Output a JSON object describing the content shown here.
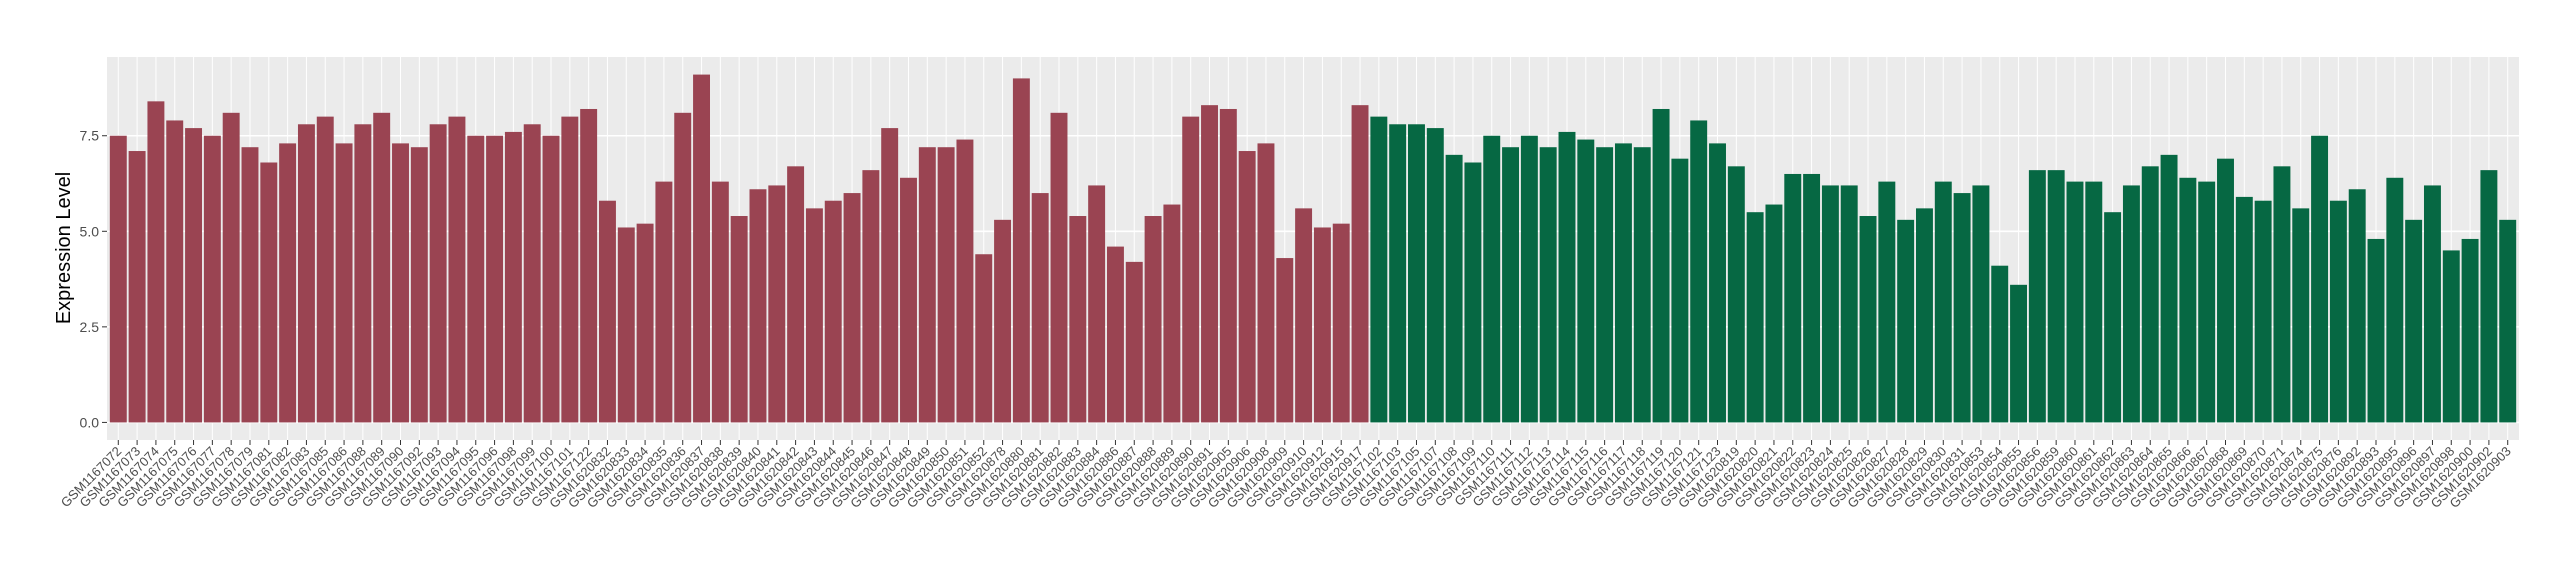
{
  "chart_data": {
    "type": "bar",
    "y_label": "Expression Level",
    "categories": [
      "GSM1167072",
      "GSM1167073",
      "GSM1167074",
      "GSM1167075",
      "GSM1167076",
      "GSM1167077",
      "GSM1167078",
      "GSM1167079",
      "GSM1167081",
      "GSM1167082",
      "GSM1167083",
      "GSM1167085",
      "GSM1167086",
      "GSM1167088",
      "GSM1167089",
      "GSM1167090",
      "GSM1167092",
      "GSM1167093",
      "GSM1167094",
      "GSM1167095",
      "GSM1167096",
      "GSM1167098",
      "GSM1167099",
      "GSM1167100",
      "GSM1167101",
      "GSM1167122",
      "GSM1620832",
      "GSM1620833",
      "GSM1620834",
      "GSM1620835",
      "GSM1620836",
      "GSM1620837",
      "GSM1620838",
      "GSM1620839",
      "GSM1620840",
      "GSM1620841",
      "GSM1620842",
      "GSM1620843",
      "GSM1620844",
      "GSM1620845",
      "GSM1620846",
      "GSM1620847",
      "GSM1620848",
      "GSM1620849",
      "GSM1620850",
      "GSM1620851",
      "GSM1620852",
      "GSM1620878",
      "GSM1620880",
      "GSM1620881",
      "GSM1620882",
      "GSM1620883",
      "GSM1620884",
      "GSM1620886",
      "GSM1620887",
      "GSM1620888",
      "GSM1620889",
      "GSM1620890",
      "GSM1620891",
      "GSM1620905",
      "GSM1620906",
      "GSM1620908",
      "GSM1620909",
      "GSM1620910",
      "GSM1620912",
      "GSM1620915",
      "GSM1620917",
      "GSM1167102",
      "GSM1167103",
      "GSM1167105",
      "GSM1167107",
      "GSM1167108",
      "GSM1167109",
      "GSM1167110",
      "GSM1167111",
      "GSM1167112",
      "GSM1167113",
      "GSM1167114",
      "GSM1167115",
      "GSM1167116",
      "GSM1167117",
      "GSM1167118",
      "GSM1167119",
      "GSM1167120",
      "GSM1167121",
      "GSM1167123",
      "GSM1620819",
      "GSM1620820",
      "GSM1620821",
      "GSM1620822",
      "GSM1620823",
      "GSM1620824",
      "GSM1620825",
      "GSM1620826",
      "GSM1620827",
      "GSM1620828",
      "GSM1620829",
      "GSM1620830",
      "GSM1620831",
      "GSM1620853",
      "GSM1620854",
      "GSM1620855",
      "GSM1620856",
      "GSM1620859",
      "GSM1620860",
      "GSM1620861",
      "GSM1620862",
      "GSM1620863",
      "GSM1620864",
      "GSM1620865",
      "GSM1620866",
      "GSM1620867",
      "GSM1620868",
      "GSM1620869",
      "GSM1620870",
      "GSM1620871",
      "GSM1620874",
      "GSM1620875",
      "GSM1620876",
      "GSM1620892",
      "GSM1620893",
      "GSM1620895",
      "GSM1620896",
      "GSM1620897",
      "GSM1620898",
      "GSM1620900",
      "GSM1620902",
      "GSM1620903"
    ],
    "values": [
      7.5,
      7.1,
      8.4,
      7.9,
      7.7,
      7.5,
      8.1,
      7.2,
      6.8,
      7.3,
      7.8,
      8.0,
      7.3,
      7.8,
      8.1,
      7.3,
      7.2,
      7.8,
      8.0,
      7.5,
      7.5,
      7.6,
      7.8,
      7.5,
      8.0,
      8.2,
      5.8,
      5.1,
      5.2,
      6.3,
      8.1,
      9.1,
      6.3,
      5.4,
      6.1,
      6.2,
      6.7,
      5.6,
      5.8,
      6.0,
      6.6,
      7.7,
      6.4,
      7.2,
      7.2,
      7.4,
      4.4,
      5.3,
      9.0,
      6.0,
      8.1,
      5.4,
      6.2,
      4.6,
      4.2,
      5.4,
      5.7,
      8.0,
      8.3,
      8.2,
      7.1,
      7.3,
      4.3,
      5.6,
      5.1,
      5.2,
      8.3,
      8.0,
      7.8,
      7.8,
      7.7,
      7.0,
      6.8,
      7.5,
      7.2,
      7.5,
      7.2,
      7.6,
      7.4,
      7.2,
      7.3,
      7.2,
      8.2,
      6.9,
      7.9,
      7.3,
      6.7,
      5.5,
      5.7,
      6.5,
      6.5,
      6.2,
      6.2,
      5.4,
      6.3,
      5.3,
      5.6,
      6.3,
      6.0,
      6.2,
      4.1,
      3.6,
      6.6,
      6.6,
      6.3,
      6.3,
      5.5,
      6.2,
      6.7,
      7.0,
      6.4,
      6.3,
      6.9,
      5.9,
      5.8,
      6.7,
      5.6,
      7.5,
      5.8,
      6.1,
      4.8,
      6.4,
      5.3,
      6.2,
      4.5,
      4.8,
      6.6,
      5.3
    ],
    "bar_colors": [
      "#9a4452",
      "#9a4452",
      "#9a4452",
      "#9a4452",
      "#9a4452",
      "#9a4452",
      "#9a4452",
      "#9a4452",
      "#9a4452",
      "#9a4452",
      "#9a4452",
      "#9a4452",
      "#9a4452",
      "#9a4452",
      "#9a4452",
      "#9a4452",
      "#9a4452",
      "#9a4452",
      "#9a4452",
      "#9a4452",
      "#9a4452",
      "#9a4452",
      "#9a4452",
      "#9a4452",
      "#9a4452",
      "#9a4452",
      "#9a4452",
      "#9a4452",
      "#9a4452",
      "#9a4452",
      "#9a4452",
      "#9a4452",
      "#9a4452",
      "#9a4452",
      "#9a4452",
      "#9a4452",
      "#9a4452",
      "#9a4452",
      "#9a4452",
      "#9a4452",
      "#9a4452",
      "#9a4452",
      "#9a4452",
      "#9a4452",
      "#9a4452",
      "#9a4452",
      "#9a4452",
      "#9a4452",
      "#9a4452",
      "#9a4452",
      "#9a4452",
      "#9a4452",
      "#9a4452",
      "#9a4452",
      "#9a4452",
      "#9a4452",
      "#9a4452",
      "#9a4452",
      "#9a4452",
      "#9a4452",
      "#9a4452",
      "#9a4452",
      "#9a4452",
      "#9a4452",
      "#9a4452",
      "#9a4452",
      "#9a4452",
      "#066843",
      "#066843",
      "#066843",
      "#066843",
      "#066843",
      "#066843",
      "#066843",
      "#066843",
      "#066843",
      "#066843",
      "#066843",
      "#066843",
      "#066843",
      "#066843",
      "#066843",
      "#066843",
      "#066843",
      "#066843",
      "#066843",
      "#066843",
      "#066843",
      "#066843",
      "#066843",
      "#066843",
      "#066843",
      "#066843",
      "#066843",
      "#066843",
      "#066843",
      "#066843",
      "#066843",
      "#066843",
      "#066843",
      "#066843",
      "#066843",
      "#066843",
      "#066843",
      "#066843",
      "#066843",
      "#066843",
      "#066843",
      "#066843",
      "#066843",
      "#066843",
      "#066843",
      "#066843",
      "#066843",
      "#066843",
      "#066843",
      "#066843",
      "#066843",
      "#066843",
      "#066843",
      "#066843",
      "#066843",
      "#066843",
      "#066843",
      "#066843",
      "#066843",
      "#066843",
      "#066843"
    ],
    "ylim": [
      -0.46,
      9.56
    ],
    "yticks": [
      {
        "value": 0,
        "label": "0.0"
      },
      {
        "value": 2.5,
        "label": "2.5"
      },
      {
        "value": 5,
        "label": "5.0"
      },
      {
        "value": 7.5,
        "label": "7.5"
      }
    ],
    "grid": true
  }
}
